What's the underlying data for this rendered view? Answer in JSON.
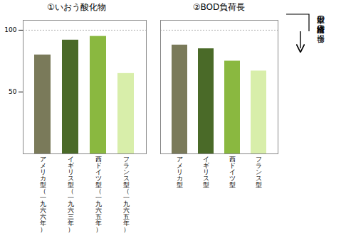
{
  "chart_data": [
    {
      "type": "bar",
      "title": "①いおう酸化物",
      "categories": [
        "アメリカ型（一九六六年）",
        "イギリス型（一九六三年）",
        "西ドイツ型（一九六五年）",
        "フランス型（一九六五年）"
      ],
      "values": [
        80,
        92,
        95,
        65
      ],
      "colors": [
        "#7a7a5a",
        "#4a6a28",
        "#8ab840",
        "#d8eeaa"
      ],
      "ylim": [
        0,
        108
      ],
      "yticks": [
        50,
        100
      ],
      "hline_y": 100
    },
    {
      "type": "bar",
      "title": "②BOD負荷長",
      "categories": [
        "アメリカ型",
        "イギリス型",
        "西ドイツ型",
        "フランス型"
      ],
      "values": [
        88,
        85,
        75,
        67
      ],
      "colors": [
        "#7a7a5a",
        "#4a6a28",
        "#8ab840",
        "#d8eeaa"
      ],
      "ylim": [
        0,
        108
      ],
      "tick_labels": "x",
      "hline_y": 100,
      "annotations": [
        "日本型の経済構造の場合"
      ]
    }
  ]
}
